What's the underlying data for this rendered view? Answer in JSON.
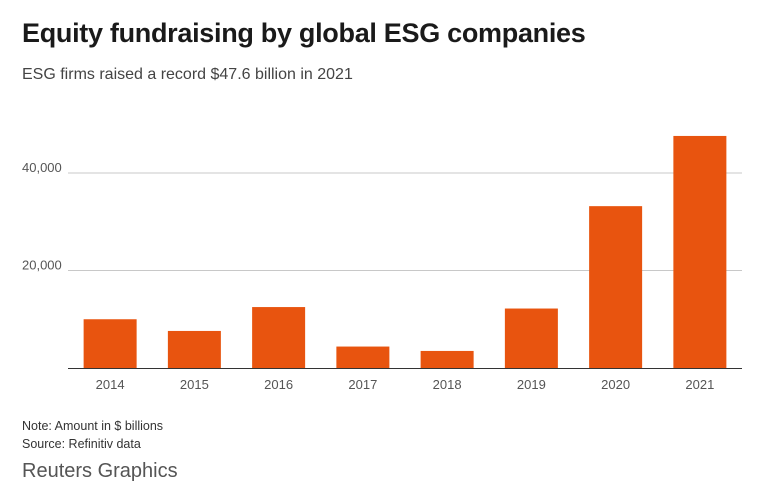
{
  "header": {
    "title": "Equity fundraising by global ESG companies",
    "subtitle": "ESG firms raised a record $47.6 billion in 2021"
  },
  "footer": {
    "note": "Note: Amount in $ billions",
    "source": "Source: Refinitiv data",
    "brand": "Reuters Graphics"
  },
  "colors": {
    "bar": "#e8540f",
    "grid": "#c8c8c8",
    "axis": "#333333",
    "tick_text": "#555555"
  },
  "chart_data": {
    "type": "bar",
    "title": "Equity fundraising by global ESG companies",
    "subtitle": "ESG firms raised a record $47.6 billion in 2021",
    "categories": [
      "2014",
      "2015",
      "2016",
      "2017",
      "2018",
      "2019",
      "2020",
      "2021"
    ],
    "values": [
      10000,
      7600,
      12500,
      4400,
      3500,
      12200,
      33200,
      47600
    ],
    "xlabel": "",
    "ylabel": "",
    "ylim": [
      0,
      48000
    ],
    "yticks": [
      20000,
      40000
    ],
    "ytick_labels": [
      "20,000",
      "40,000"
    ],
    "grid": true,
    "legend": "none"
  }
}
